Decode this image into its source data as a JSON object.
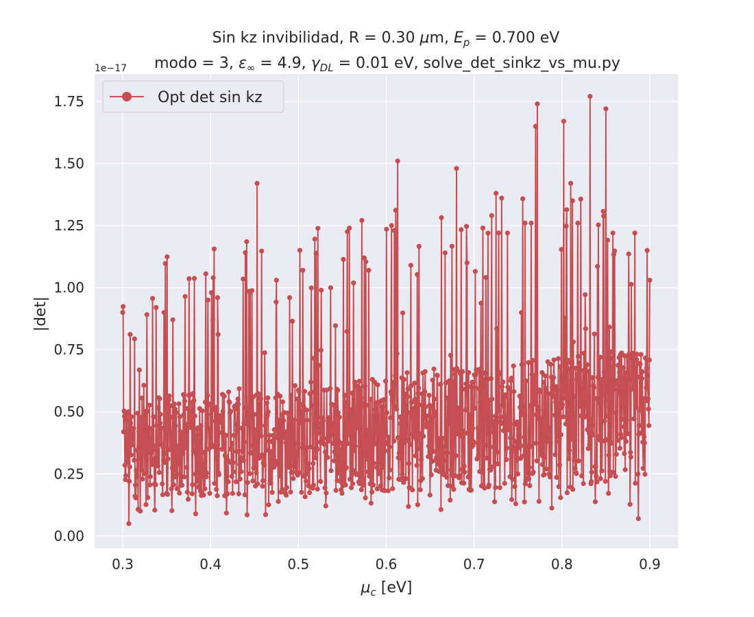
{
  "chart_data": {
    "type": "line",
    "title": {
      "line1_pre": "Sin kz invibilidad, R = 0.30 ",
      "line1_mu": "μ",
      "line1_mid": "m, ",
      "line1_E": "E",
      "line1_Esub": "p",
      "line1_post": " = 0.700 eV",
      "line2_pre": "modo = 3, ",
      "line2_eps": "ε",
      "line2_epssub": "∞",
      "line2_mid": " = 4.9, ",
      "line2_gamma": "γ",
      "line2_gammasub": "DL",
      "line2_post": " = 0.01 eV, solve_det_sinkz_vs_mu.py"
    },
    "xlabel": {
      "sym": "μ",
      "sub": "c",
      "rest": " [eV]"
    },
    "ylabel": "|det|",
    "y_offset_label": "1e−17",
    "xlim": [
      0.268,
      0.932
    ],
    "ylim": [
      -0.05,
      1.86
    ],
    "xticks": [
      {
        "v": 0.3,
        "label": "0.3"
      },
      {
        "v": 0.4,
        "label": "0.4"
      },
      {
        "v": 0.5,
        "label": "0.5"
      },
      {
        "v": 0.6,
        "label": "0.6"
      },
      {
        "v": 0.7,
        "label": "0.7"
      },
      {
        "v": 0.8,
        "label": "0.8"
      },
      {
        "v": 0.9,
        "label": "0.9"
      }
    ],
    "yticks": [
      {
        "v": 0.0,
        "label": "0.00"
      },
      {
        "v": 0.25,
        "label": "0.25"
      },
      {
        "v": 0.5,
        "label": "0.50"
      },
      {
        "v": 0.75,
        "label": "0.75"
      },
      {
        "v": 1.0,
        "label": "1.00"
      },
      {
        "v": 1.25,
        "label": "1.25"
      },
      {
        "v": 1.5,
        "label": "1.50"
      },
      {
        "v": 1.75,
        "label": "1.75"
      }
    ],
    "grid": true,
    "legend_position": "top-left",
    "colors": {
      "background": "#eaeaf2",
      "grid": "#ffffff",
      "series": "#c44e52"
    },
    "series": [
      {
        "name": "Opt det sin kz",
        "approximate": true,
        "x_range": [
          0.3,
          0.9
        ],
        "n_points": 1200,
        "baseline_band_at_0.3": [
          0.15,
          0.55
        ],
        "baseline_band_at_0.9": [
          0.2,
          0.75
        ],
        "peaks": [
          {
            "x": 0.3,
            "y": 0.9
          },
          {
            "x": 0.307,
            "y": 0.05
          },
          {
            "x": 0.338,
            "y": 0.92
          },
          {
            "x": 0.347,
            "y": 0.9
          },
          {
            "x": 0.397,
            "y": 0.95
          },
          {
            "x": 0.401,
            "y": 0.98
          },
          {
            "x": 0.403,
            "y": 1.04
          },
          {
            "x": 0.408,
            "y": 0.96
          },
          {
            "x": 0.453,
            "y": 1.42
          },
          {
            "x": 0.475,
            "y": 1.03
          },
          {
            "x": 0.49,
            "y": 0.96
          },
          {
            "x": 0.505,
            "y": 1.07
          },
          {
            "x": 0.526,
            "y": 0.99
          },
          {
            "x": 0.558,
            "y": 1.24
          },
          {
            "x": 0.575,
            "y": 1.12
          },
          {
            "x": 0.58,
            "y": 1.07
          },
          {
            "x": 0.606,
            "y": 1.25
          },
          {
            "x": 0.613,
            "y": 1.51
          },
          {
            "x": 0.628,
            "y": 1.09
          },
          {
            "x": 0.667,
            "y": 1.14
          },
          {
            "x": 0.68,
            "y": 1.48
          },
          {
            "x": 0.692,
            "y": 1.1
          },
          {
            "x": 0.71,
            "y": 1.24
          },
          {
            "x": 0.72,
            "y": 1.29
          },
          {
            "x": 0.725,
            "y": 1.38
          },
          {
            "x": 0.728,
            "y": 1.22
          },
          {
            "x": 0.738,
            "y": 1.22
          },
          {
            "x": 0.758,
            "y": 1.26
          },
          {
            "x": 0.765,
            "y": 1.26
          },
          {
            "x": 0.77,
            "y": 1.65
          },
          {
            "x": 0.772,
            "y": 1.74
          },
          {
            "x": 0.802,
            "y": 1.67
          },
          {
            "x": 0.81,
            "y": 1.42
          },
          {
            "x": 0.812,
            "y": 1.35
          },
          {
            "x": 0.818,
            "y": 1.26
          },
          {
            "x": 0.832,
            "y": 1.77
          },
          {
            "x": 0.85,
            "y": 1.72
          },
          {
            "x": 0.858,
            "y": 1.22
          },
          {
            "x": 0.883,
            "y": 1.22
          },
          {
            "x": 0.887,
            "y": 0.07
          },
          {
            "x": 0.897,
            "y": 1.15
          },
          {
            "x": 0.9,
            "y": 1.03
          }
        ]
      }
    ]
  }
}
